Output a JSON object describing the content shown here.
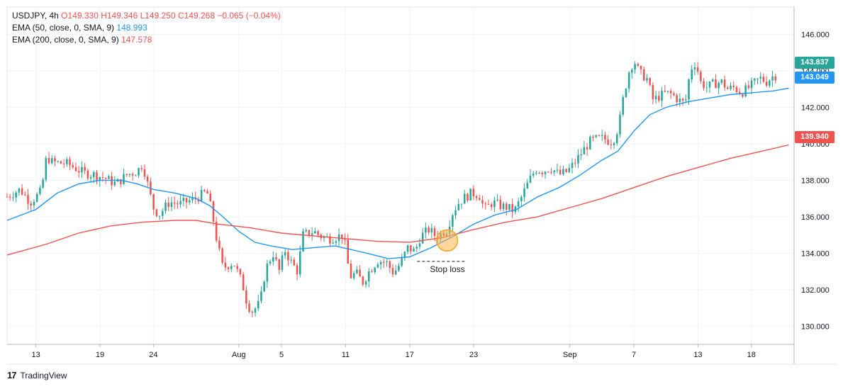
{
  "legend": {
    "symbol": "USDJPY, 4h",
    "ohlc": "O149.330 H149.346 L149.250 C149.268 −0.065 (−0.04%)",
    "ema50_label": "EMA (50, close, 0, SMA, 9)",
    "ema50_value": "148.993",
    "ema200_label": "EMA (200, close, 0, SMA, 9)",
    "ema200_value": "147.578"
  },
  "footer": {
    "brand": "TradingView"
  },
  "tags": {
    "last_price": "143.837",
    "ema50": "143.049",
    "ema200": "139.940"
  },
  "colors": {
    "up": "#26a69a",
    "down": "#ef5350",
    "ema50": "#2196f3",
    "ema200": "#ef5350"
  },
  "chart_data": {
    "type": "line",
    "yticks": [
      "146.000",
      "144.000",
      "142.000",
      "140.000",
      "138.000",
      "136.000",
      "134.000",
      "132.000",
      "130.000"
    ],
    "ylim": [
      129,
      147.5
    ],
    "xticks": [
      {
        "label": "13",
        "day": 13
      },
      {
        "label": "19",
        "day": 19
      },
      {
        "label": "24",
        "day": 24
      },
      {
        "label": "Aug",
        "day": 32
      },
      {
        "label": "5",
        "day": 36
      },
      {
        "label": "11",
        "day": 42
      },
      {
        "label": "17",
        "day": 48
      },
      {
        "label": "23",
        "day": 54
      },
      {
        "label": "Sep",
        "day": 63
      },
      {
        "label": "7",
        "day": 69
      },
      {
        "label": "13",
        "day": 75
      },
      {
        "label": "18",
        "day": 80
      }
    ],
    "xlim": [
      10.3,
      84.0
    ],
    "annotation": {
      "text": "Stop loss",
      "price": 133.55,
      "day_from": 48.7,
      "day_to": 53.3
    },
    "cross_marker": {
      "day": 51.5,
      "price": 134.7
    },
    "price_path": [
      [
        10.3,
        137.1
      ],
      [
        11.5,
        137.5
      ],
      [
        12.5,
        136.8
      ],
      [
        13.5,
        137.4
      ],
      [
        14.0,
        139.3
      ],
      [
        14.5,
        139.0
      ],
      [
        16.0,
        138.9
      ],
      [
        17.5,
        138.4
      ],
      [
        18.5,
        138.3
      ],
      [
        19.5,
        138.1
      ],
      [
        20.5,
        137.8
      ],
      [
        21.5,
        138.3
      ],
      [
        22.5,
        138.5
      ],
      [
        23.0,
        138.9
      ],
      [
        23.5,
        137.7
      ],
      [
        24.0,
        136.5
      ],
      [
        24.5,
        136.1
      ],
      [
        25.5,
        136.8
      ],
      [
        26.5,
        136.7
      ],
      [
        28.0,
        137.0
      ],
      [
        29.0,
        137.4
      ],
      [
        29.5,
        136.2
      ],
      [
        30.0,
        134.5
      ],
      [
        30.5,
        133.2
      ],
      [
        31.5,
        133.5
      ],
      [
        32.3,
        132.4
      ],
      [
        32.8,
        131.2
      ],
      [
        33.3,
        130.8
      ],
      [
        34.0,
        131.3
      ],
      [
        34.5,
        133.1
      ],
      [
        35.2,
        134.0
      ],
      [
        35.8,
        133.0
      ],
      [
        36.3,
        134.2
      ],
      [
        36.8,
        133.6
      ],
      [
        37.5,
        133.0
      ],
      [
        38.0,
        135.0
      ],
      [
        39.0,
        135.2
      ],
      [
        39.8,
        134.9
      ],
      [
        40.5,
        134.8
      ],
      [
        41.2,
        134.9
      ],
      [
        41.8,
        135.0
      ],
      [
        42.4,
        132.7
      ],
      [
        43.0,
        132.9
      ],
      [
        43.6,
        132.4
      ],
      [
        44.2,
        133.0
      ],
      [
        45.0,
        133.6
      ],
      [
        45.8,
        133.5
      ],
      [
        46.5,
        132.9
      ],
      [
        47.2,
        133.5
      ],
      [
        47.8,
        134.3
      ],
      [
        48.5,
        134.1
      ],
      [
        49.0,
        134.9
      ],
      [
        49.8,
        135.3
      ],
      [
        50.5,
        134.9
      ],
      [
        51.5,
        135.3
      ],
      [
        52.0,
        136.2
      ],
      [
        52.5,
        136.7
      ],
      [
        53.0,
        137.0
      ],
      [
        53.8,
        137.3
      ],
      [
        54.5,
        137.2
      ],
      [
        55.0,
        136.4
      ],
      [
        55.8,
        136.8
      ],
      [
        56.5,
        136.6
      ],
      [
        57.2,
        136.5
      ],
      [
        57.8,
        136.3
      ],
      [
        58.5,
        137.1
      ],
      [
        59.2,
        138.0
      ],
      [
        59.8,
        138.6
      ],
      [
        60.5,
        138.5
      ],
      [
        61.2,
        138.7
      ],
      [
        62.0,
        138.3
      ],
      [
        62.8,
        138.5
      ],
      [
        63.5,
        139.0
      ],
      [
        64.2,
        139.6
      ],
      [
        65.0,
        140.2
      ],
      [
        66.0,
        140.3
      ],
      [
        67.0,
        140.1
      ],
      [
        67.6,
        141.0
      ],
      [
        68.0,
        142.5
      ],
      [
        68.5,
        143.9
      ],
      [
        69.0,
        144.6
      ],
      [
        69.5,
        143.9
      ],
      [
        70.2,
        143.6
      ],
      [
        70.8,
        142.4
      ],
      [
        71.4,
        142.6
      ],
      [
        72.0,
        142.8
      ],
      [
        72.6,
        142.7
      ],
      [
        73.2,
        142.4
      ],
      [
        73.8,
        142.2
      ],
      [
        74.3,
        144.1
      ],
      [
        74.8,
        144.5
      ],
      [
        75.2,
        143.4
      ],
      [
        75.8,
        143.1
      ],
      [
        76.5,
        143.3
      ],
      [
        77.2,
        143.4
      ],
      [
        77.8,
        143.0
      ],
      [
        78.4,
        143.1
      ],
      [
        79.0,
        142.8
      ],
      [
        79.6,
        143.0
      ],
      [
        80.2,
        143.3
      ],
      [
        80.8,
        143.6
      ],
      [
        81.4,
        143.4
      ],
      [
        82.0,
        143.7
      ],
      [
        82.5,
        143.8
      ]
    ],
    "series": [
      {
        "name": "EMA (50, close, 0, SMA, 9)",
        "points": [
          [
            10.3,
            135.8
          ],
          [
            13,
            136.4
          ],
          [
            15,
            137.3
          ],
          [
            17,
            137.8
          ],
          [
            19,
            138.0
          ],
          [
            21,
            138.0
          ],
          [
            22.5,
            137.8
          ],
          [
            24,
            137.5
          ],
          [
            26,
            137.3
          ],
          [
            28,
            137.0
          ],
          [
            29.3,
            136.6
          ],
          [
            30.5,
            136.0
          ],
          [
            32,
            135.2
          ],
          [
            33.5,
            134.6
          ],
          [
            35,
            134.4
          ],
          [
            37,
            134.2
          ],
          [
            39,
            134.3
          ],
          [
            41,
            134.4
          ],
          [
            42.5,
            134.2
          ],
          [
            44,
            134.0
          ],
          [
            46,
            133.7
          ],
          [
            48,
            133.8
          ],
          [
            50,
            134.3
          ],
          [
            52,
            134.9
          ],
          [
            54,
            135.6
          ],
          [
            56,
            136.1
          ],
          [
            58,
            136.4
          ],
          [
            60,
            137.1
          ],
          [
            62,
            137.6
          ],
          [
            64,
            138.3
          ],
          [
            66,
            139.1
          ],
          [
            67.5,
            139.6
          ],
          [
            69,
            140.7
          ],
          [
            70.5,
            141.6
          ],
          [
            72,
            142.0
          ],
          [
            74,
            142.3
          ],
          [
            76,
            142.5
          ],
          [
            78,
            142.7
          ],
          [
            80,
            142.8
          ],
          [
            82,
            142.9
          ],
          [
            83.5,
            143.049
          ]
        ]
      },
      {
        "name": "EMA (200, close, 0, SMA, 9)",
        "points": [
          [
            10.3,
            133.9
          ],
          [
            14,
            134.5
          ],
          [
            17,
            135.1
          ],
          [
            20,
            135.5
          ],
          [
            23,
            135.7
          ],
          [
            26,
            135.8
          ],
          [
            28,
            135.8
          ],
          [
            30,
            135.6
          ],
          [
            33,
            135.4
          ],
          [
            36,
            135.1
          ],
          [
            39,
            134.95
          ],
          [
            42,
            134.8
          ],
          [
            45,
            134.65
          ],
          [
            48,
            134.6
          ],
          [
            51,
            134.85
          ],
          [
            54,
            135.3
          ],
          [
            57,
            135.7
          ],
          [
            60,
            136.0
          ],
          [
            63,
            136.5
          ],
          [
            66,
            137.0
          ],
          [
            69,
            137.6
          ],
          [
            72,
            138.2
          ],
          [
            75,
            138.7
          ],
          [
            78,
            139.2
          ],
          [
            81,
            139.6
          ],
          [
            83.5,
            139.94
          ]
        ]
      }
    ]
  }
}
